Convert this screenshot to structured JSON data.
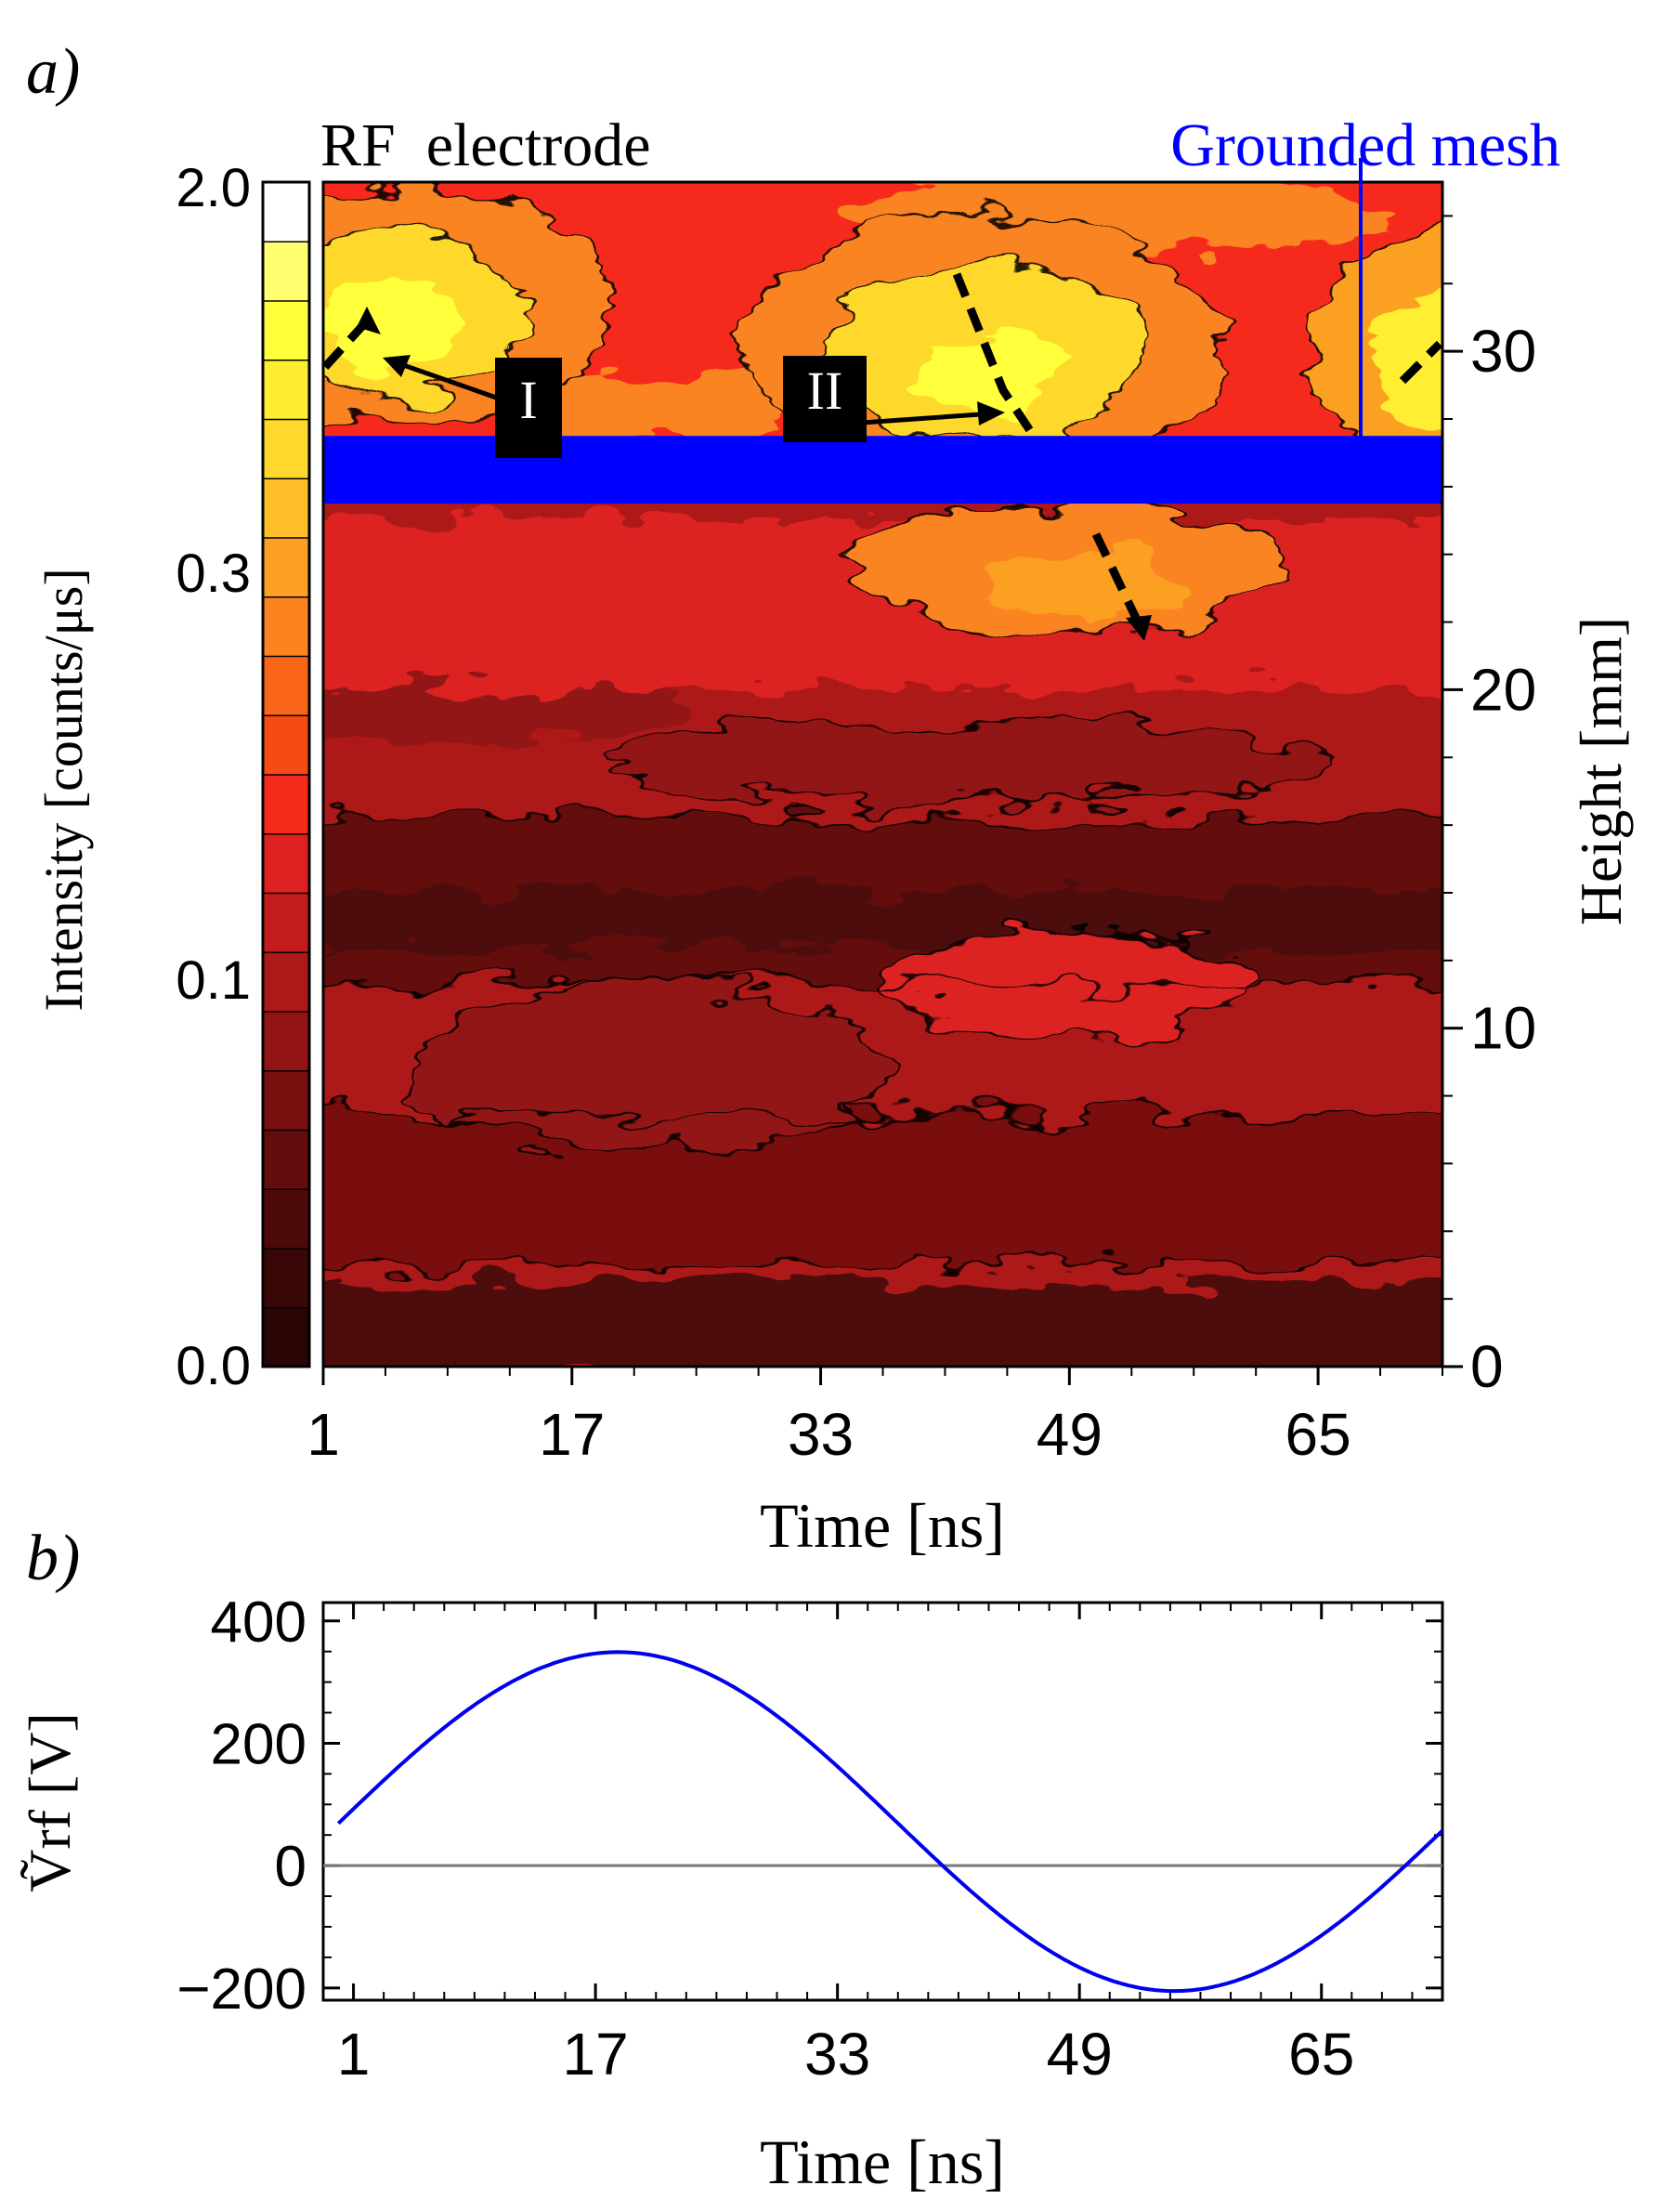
{
  "chart_data": [
    {
      "type": "heatmap",
      "panel_label": "a)",
      "xlabel": "Time [ns]",
      "ylabel_right": "Height [mm]",
      "colorbar_label": "Intensity [counts/μs]",
      "xlim": [
        1,
        73
      ],
      "ylim": [
        0,
        35
      ],
      "xticks": [
        1,
        17,
        33,
        49,
        65
      ],
      "xtick_labels": [
        "1",
        "17",
        "33",
        "49",
        "65"
      ],
      "yticks": [
        0,
        10,
        20,
        30
      ],
      "ytick_labels": [
        "0",
        "10",
        "20",
        "30"
      ],
      "colorbar_ticks": [
        "0.0",
        "0.1",
        "0.3",
        "2.0"
      ],
      "colorbar_colors": [
        "#2a0505",
        "#3a0707",
        "#4e0a0a",
        "#640d0d",
        "#7a1010",
        "#931414",
        "#ad1818",
        "#c41c1c",
        "#dd2020",
        "#f52a1a",
        "#f84a14",
        "#f9661a",
        "#fb8420",
        "#fca024",
        "#fdbe28",
        "#fed82c",
        "#ffee30",
        "#ffff3a",
        "#ffff70",
        "#ffffff"
      ],
      "top_label": "RF  electrode",
      "mesh_label": "Grounded mesh",
      "mesh_height_mm": [
        25.5,
        27.5
      ],
      "annotations": [
        {
          "label": "I",
          "t": 12.5,
          "h": 29.5
        },
        {
          "label": "II",
          "t": 33,
          "h": 29.5
        }
      ],
      "mesh_color": "#0000ff"
    },
    {
      "type": "line",
      "panel_label": "b)",
      "xlabel": "Time [ns]",
      "ylabel": "Ṽrf [V]",
      "xlim": [
        -1,
        73
      ],
      "ylim": [
        -220,
        430
      ],
      "xticks": [
        1,
        17,
        33,
        49,
        65
      ],
      "xtick_labels": [
        "1",
        "17",
        "33",
        "49",
        "65"
      ],
      "yticks": [
        -200,
        0,
        200,
        400
      ],
      "ytick_labels": [
        "−200",
        "0",
        "200",
        "400"
      ],
      "series": [
        {
          "name": "Vrf",
          "color": "#0000ee",
          "offset": 72,
          "amplitude": 277,
          "period_ns": 73.5,
          "peak_t": 18.5
        }
      ],
      "zero_line": true
    }
  ]
}
